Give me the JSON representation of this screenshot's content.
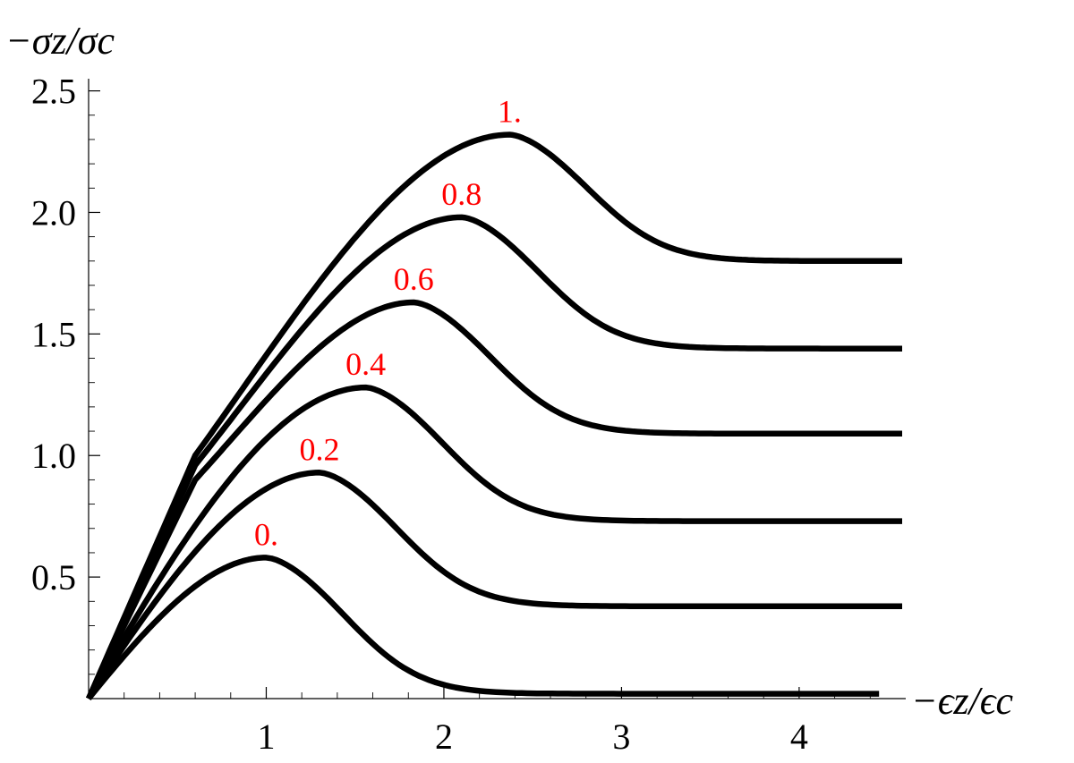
{
  "chart_data": {
    "type": "line",
    "title": "",
    "xlabel": "−ϵz/ϵc",
    "ylabel": "−σz/σc",
    "xlim": [
      0,
      4.6
    ],
    "ylim": [
      0,
      2.55
    ],
    "x_ticks": [
      {
        "value": 1,
        "label": "1"
      },
      {
        "value": 2,
        "label": "2"
      },
      {
        "value": 3,
        "label": "3"
      },
      {
        "value": 4,
        "label": "4"
      }
    ],
    "y_ticks": [
      {
        "value": 0.5,
        "label": "0.5"
      },
      {
        "value": 1.0,
        "label": "1.0"
      },
      {
        "value": 1.5,
        "label": "1.5"
      },
      {
        "value": 2.0,
        "label": "2.0"
      },
      {
        "value": 2.5,
        "label": "2.5"
      }
    ],
    "grid": false,
    "legend": "none",
    "series": [
      {
        "name": "0.",
        "x_peak": 1.0,
        "y_peak": 0.58,
        "y_end": 0.02,
        "x_end": 4.45,
        "kink": null,
        "label_color": "#ff0000"
      },
      {
        "name": "0.2",
        "x_peak": 1.3,
        "y_peak": 0.93,
        "y_end": 0.38,
        "x_end": 4.58,
        "kink": null,
        "label_color": "#ff0000"
      },
      {
        "name": "0.4",
        "x_peak": 1.56,
        "y_peak": 1.28,
        "y_end": 0.73,
        "x_end": 4.58,
        "kink": null,
        "label_color": "#ff0000"
      },
      {
        "name": "0.6",
        "x_peak": 1.83,
        "y_peak": 1.63,
        "y_end": 1.09,
        "x_end": 4.58,
        "kink": [
          0.6,
          0.9
        ],
        "label_color": "#ff0000"
      },
      {
        "name": "0.8",
        "x_peak": 2.1,
        "y_peak": 1.98,
        "y_end": 1.44,
        "x_end": 4.58,
        "kink": [
          0.6,
          0.96
        ],
        "label_color": "#ff0000"
      },
      {
        "name": "1.",
        "x_peak": 2.37,
        "y_peak": 2.32,
        "y_end": 1.8,
        "x_end": 4.58,
        "kink": [
          0.6,
          1.0
        ],
        "label_color": "#ff0000"
      }
    ]
  }
}
